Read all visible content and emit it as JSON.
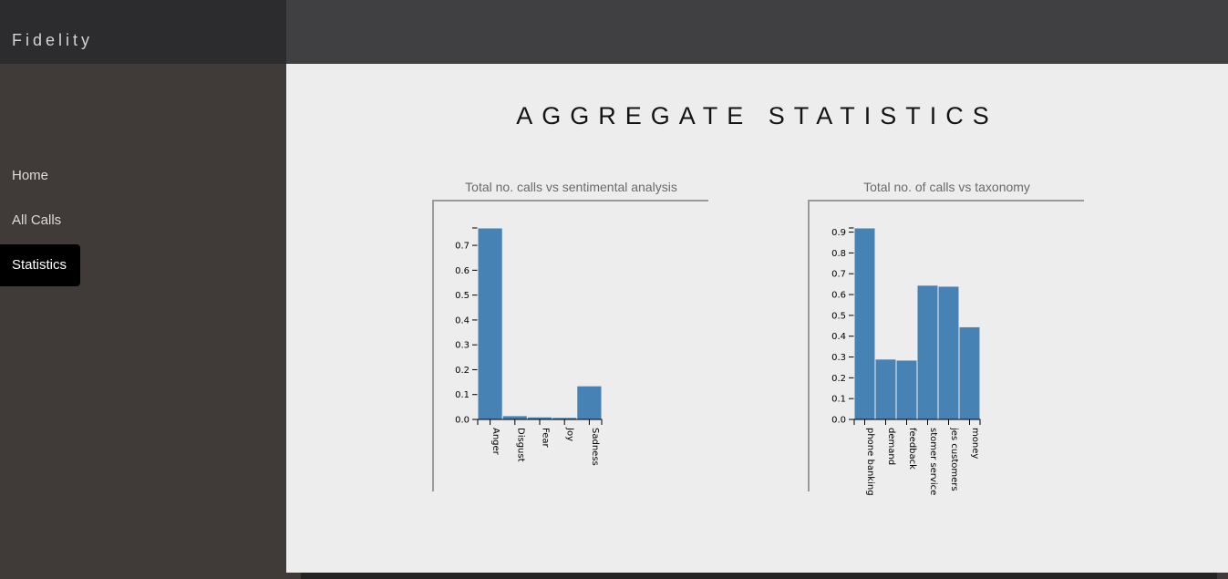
{
  "app": {
    "brand": "Fidelity"
  },
  "sidebar": {
    "items": [
      {
        "label": "Home",
        "active": false
      },
      {
        "label": "All Calls",
        "active": false
      },
      {
        "label": "Statistics",
        "active": true
      }
    ]
  },
  "main": {
    "title": "AGGREGATE STATISTICS"
  },
  "chart_data": [
    {
      "type": "bar",
      "title": "Total no. calls vs sentimental analysis",
      "categories": [
        "Anger",
        "Disgust",
        "Fear",
        "Joy",
        "Sadness"
      ],
      "values": [
        0.77,
        0.015,
        0.01,
        0.008,
        0.135
      ],
      "ylim": [
        0,
        0.77
      ],
      "yticks": [
        "0.0",
        "0.1",
        "0.2",
        "0.3",
        "0.4",
        "0.5",
        "0.6",
        "0.7"
      ],
      "xlabel": "",
      "ylabel": "",
      "color": "#4682b4"
    },
    {
      "type": "bar",
      "title": "Total no. of calls vs taxonomy",
      "categories": [
        "phone banking",
        "demand",
        "feedback",
        "customer service",
        "types customers",
        "money"
      ],
      "tick_labels": [
        "phone banking",
        "demand",
        "feedback",
        "stomer service",
        "jes customers",
        "money"
      ],
      "values": [
        0.92,
        0.29,
        0.285,
        0.645,
        0.64,
        0.445
      ],
      "ylim": [
        0,
        0.92
      ],
      "yticks": [
        "0.0",
        "0.1",
        "0.2",
        "0.3",
        "0.4",
        "0.5",
        "0.6",
        "0.7",
        "0.8",
        "0.9"
      ],
      "xlabel": "",
      "ylabel": "",
      "color": "#4682b4"
    }
  ]
}
